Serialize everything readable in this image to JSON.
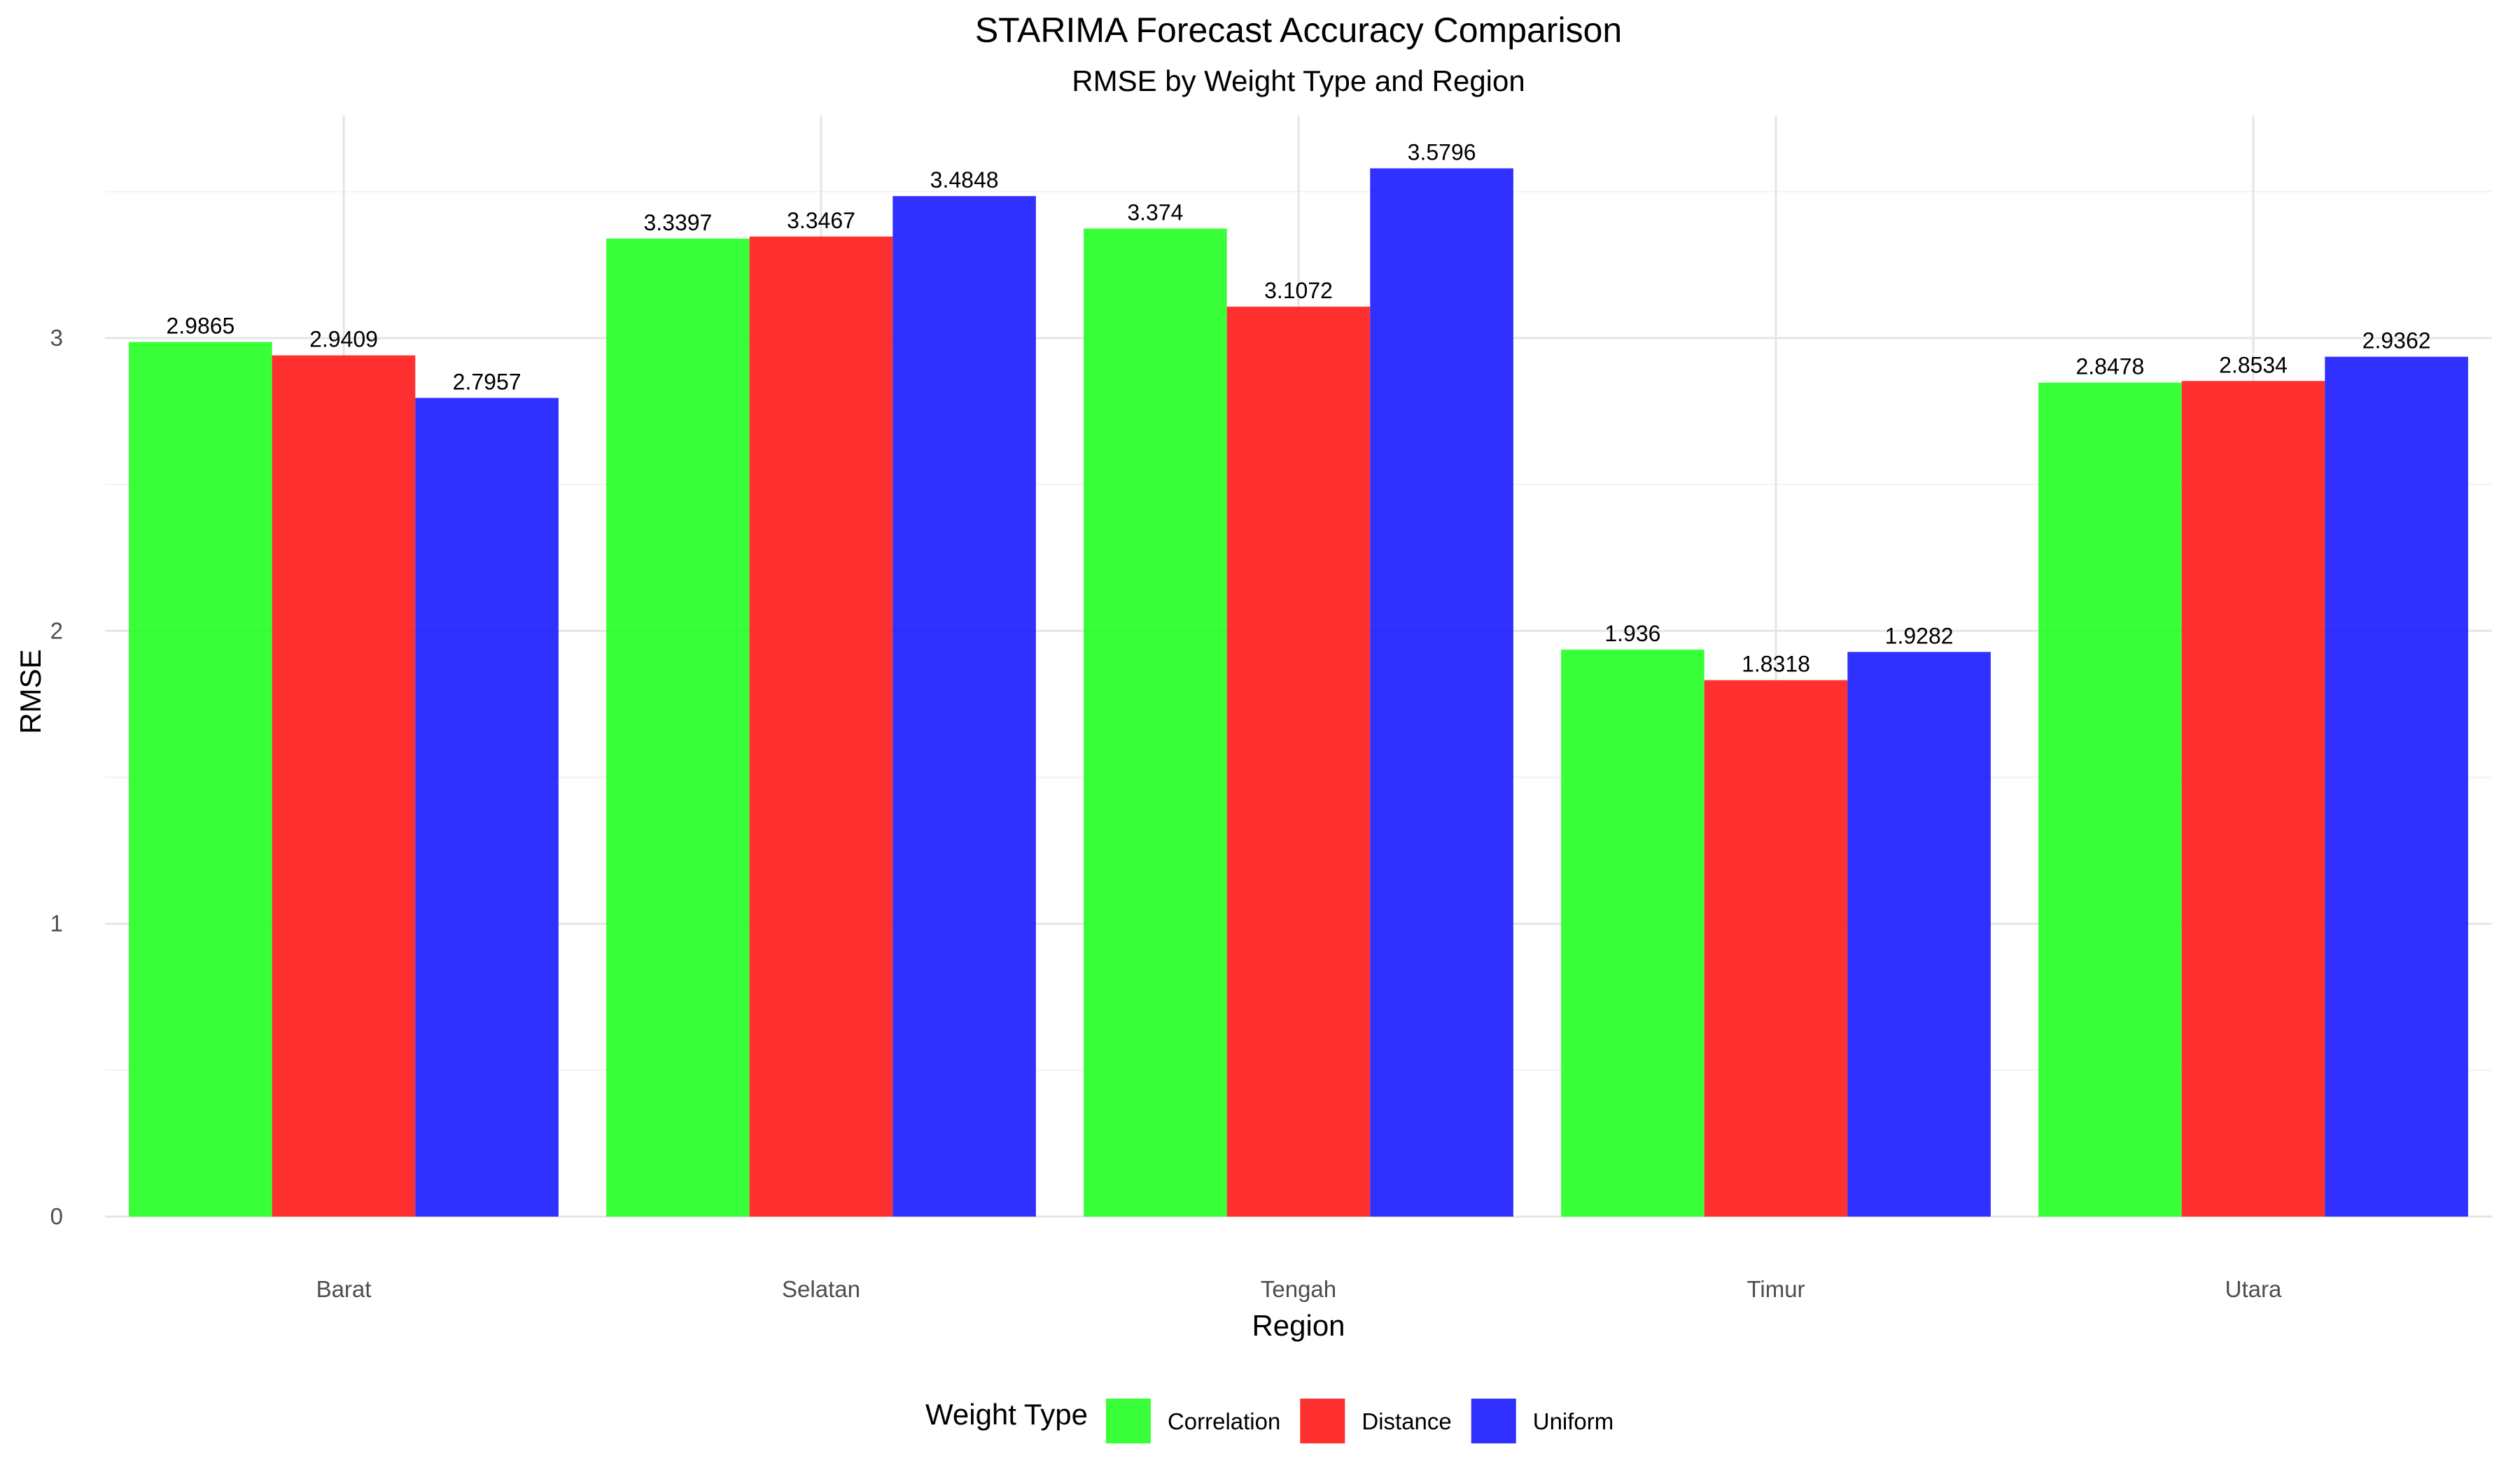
{
  "chart_data": {
    "type": "bar",
    "title": "STARIMA Forecast Accuracy Comparison",
    "subtitle": "RMSE by Weight Type and Region",
    "xlabel": "Region",
    "ylabel": "RMSE",
    "categories": [
      "Barat",
      "Selatan",
      "Tengah",
      "Timur",
      "Utara"
    ],
    "series": [
      {
        "name": "Correlation",
        "color": "#22ff22",
        "values": [
          2.9865,
          3.3397,
          3.374,
          1.936,
          2.8478
        ]
      },
      {
        "name": "Distance",
        "color": "#ff1a1a",
        "values": [
          2.9409,
          3.3467,
          3.1072,
          1.8318,
          2.8534
        ]
      },
      {
        "name": "Uniform",
        "color": "#1a1aff",
        "values": [
          2.7957,
          3.4848,
          3.5796,
          1.9282,
          2.9362
        ]
      }
    ],
    "data_labels": [
      [
        "2.9865",
        "3.3397",
        "3.374",
        "1.936",
        "2.8478"
      ],
      [
        "2.9409",
        "3.3467",
        "3.1072",
        "1.8318",
        "2.8534"
      ],
      [
        "2.7957",
        "3.4848",
        "3.5796",
        "1.9282",
        "2.9362"
      ]
    ],
    "yticks": [
      0,
      1,
      2,
      3
    ],
    "ylim": [
      0,
      3.76
    ],
    "grid": true,
    "legend": {
      "title": "Weight Type",
      "position": "bottom"
    }
  }
}
